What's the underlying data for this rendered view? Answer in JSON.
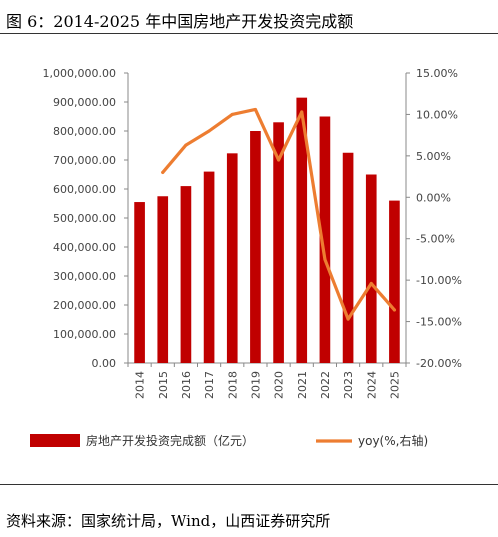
{
  "header": {
    "title": "图 6：2014-2025 年中国房地产开发投资完成额"
  },
  "footer": {
    "source": "资料来源：国家统计局，Wind，山西证券研究所"
  },
  "chart_data": {
    "type": "bar",
    "title": "图 6：2014-2025 年中国房地产开发投资完成额",
    "categories": [
      "2014",
      "2015",
      "2016",
      "2017",
      "2018",
      "2019",
      "2020",
      "2021",
      "2022",
      "2023",
      "2024",
      "2025"
    ],
    "series": [
      {
        "name": "房地产开发投资完成额（亿元）",
        "type": "bar",
        "axis": "left",
        "color": "#C00000",
        "values": [
          555000,
          575000,
          610000,
          660000,
          723000,
          800000,
          830000,
          915000,
          850000,
          725000,
          650000,
          560000
        ]
      },
      {
        "name": "yoy(%,右轴)",
        "type": "line",
        "axis": "right",
        "color": "#ED7D31",
        "values": [
          null,
          3.0,
          6.3,
          8.0,
          10.0,
          10.6,
          4.5,
          10.3,
          -7.5,
          -14.7,
          -10.4,
          -13.6
        ]
      }
    ],
    "y_left": {
      "ylim": [
        0,
        1000000
      ],
      "step": 100000,
      "ticks": [
        "0.00",
        "100,000.00",
        "200,000.00",
        "300,000.00",
        "400,000.00",
        "500,000.00",
        "600,000.00",
        "700,000.00",
        "800,000.00",
        "900,000.00",
        "1,000,000.00"
      ]
    },
    "y_right": {
      "ylim": [
        -20,
        15
      ],
      "step": 5,
      "ticks": [
        "-20.00%",
        "-15.00%",
        "-10.00%",
        "-5.00%",
        "0.00%",
        "5.00%",
        "10.00%",
        "15.00%"
      ]
    },
    "legend": {
      "position": "bottom",
      "entries": [
        "房地产开发投资完成额（亿元）",
        "yoy(%,右轴)"
      ]
    },
    "grid": false
  }
}
